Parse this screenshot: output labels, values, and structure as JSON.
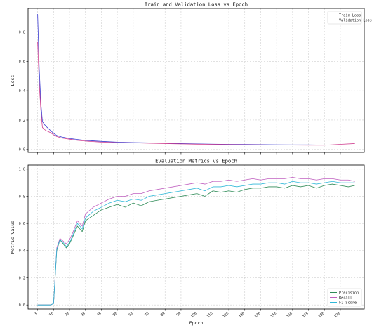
{
  "chart_data": [
    {
      "type": "line",
      "title": "Train and Validation Loss vs Epoch",
      "xlabel": "",
      "ylabel": "Loss",
      "xlim": [
        -6,
        205
      ],
      "ylim": [
        -0.02,
        0.96
      ],
      "xticks": [
        0,
        10,
        20,
        30,
        40,
        50,
        60,
        70,
        80,
        90,
        100,
        110,
        120,
        130,
        140,
        150,
        160,
        170,
        180,
        190
      ],
      "show_xtick_labels": false,
      "yticks": [
        0.0,
        0.2,
        0.4,
        0.6,
        0.8
      ],
      "ytick_labels": [
        "0.0",
        "0.2",
        "0.4",
        "0.6",
        "0.8"
      ],
      "grid": true,
      "legend_position": "top-right",
      "series": [
        {
          "name": "Train Loss",
          "color": "#3a3ad0",
          "x": [
            0,
            1,
            2,
            3,
            5,
            8,
            10,
            12,
            15,
            20,
            25,
            30,
            40,
            50,
            60,
            70,
            80,
            90,
            100,
            110,
            120,
            130,
            140,
            150,
            160,
            170,
            180,
            190,
            199
          ],
          "y": [
            0.92,
            0.55,
            0.32,
            0.19,
            0.16,
            0.13,
            0.11,
            0.095,
            0.085,
            0.075,
            0.068,
            0.062,
            0.055,
            0.05,
            0.047,
            0.045,
            0.042,
            0.04,
            0.038,
            0.036,
            0.035,
            0.034,
            0.033,
            0.032,
            0.031,
            0.031,
            0.03,
            0.03,
            0.03
          ]
        },
        {
          "name": "Validation Loss",
          "color": "#d04090",
          "x": [
            0,
            1,
            2,
            3,
            5,
            8,
            10,
            12,
            15,
            20,
            25,
            30,
            40,
            50,
            60,
            70,
            80,
            90,
            100,
            110,
            120,
            130,
            140,
            150,
            160,
            170,
            180,
            190,
            199
          ],
          "y": [
            0.73,
            0.45,
            0.27,
            0.15,
            0.13,
            0.115,
            0.1,
            0.088,
            0.078,
            0.07,
            0.062,
            0.057,
            0.05,
            0.046,
            0.045,
            0.042,
            0.04,
            0.038,
            0.036,
            0.035,
            0.033,
            0.032,
            0.031,
            0.03,
            0.03,
            0.029,
            0.029,
            0.035,
            0.04
          ]
        }
      ]
    },
    {
      "type": "line",
      "title": "Evaluation Metrics vs Epoch",
      "xlabel": "Epoch",
      "ylabel": "Metric Value",
      "xlim": [
        -6,
        205
      ],
      "ylim": [
        -0.03,
        1.03
      ],
      "xticks": [
        0,
        10,
        20,
        30,
        40,
        50,
        60,
        70,
        80,
        90,
        100,
        110,
        120,
        130,
        140,
        150,
        160,
        170,
        180,
        190
      ],
      "show_xtick_labels": true,
      "yticks": [
        0.0,
        0.2,
        0.4,
        0.6,
        0.8,
        1.0
      ],
      "ytick_labels": [
        "0.0",
        "0.2",
        "0.4",
        "0.6",
        "0.8",
        "1.0"
      ],
      "grid": true,
      "legend_position": "bottom-right",
      "series": [
        {
          "name": "Precision",
          "color": "#2e8b57",
          "x": [
            0,
            2,
            4,
            6,
            8,
            10,
            12,
            14,
            16,
            18,
            20,
            22,
            25,
            28,
            30,
            35,
            40,
            45,
            50,
            55,
            60,
            65,
            70,
            75,
            80,
            85,
            90,
            95,
            100,
            105,
            110,
            115,
            120,
            125,
            130,
            135,
            140,
            145,
            150,
            155,
            160,
            165,
            170,
            175,
            180,
            185,
            190,
            195,
            199
          ],
          "y": [
            0.0,
            0.0,
            0.0,
            0.0,
            0.0,
            0.01,
            0.4,
            0.48,
            0.45,
            0.42,
            0.45,
            0.5,
            0.58,
            0.54,
            0.62,
            0.66,
            0.7,
            0.72,
            0.74,
            0.72,
            0.75,
            0.73,
            0.76,
            0.77,
            0.78,
            0.79,
            0.8,
            0.81,
            0.82,
            0.8,
            0.84,
            0.83,
            0.84,
            0.83,
            0.85,
            0.86,
            0.86,
            0.87,
            0.87,
            0.86,
            0.88,
            0.87,
            0.88,
            0.86,
            0.88,
            0.89,
            0.88,
            0.87,
            0.88
          ]
        },
        {
          "name": "Recall",
          "color": "#c060c0",
          "x": [
            0,
            2,
            4,
            6,
            8,
            10,
            12,
            14,
            16,
            18,
            20,
            22,
            25,
            28,
            30,
            35,
            40,
            45,
            50,
            55,
            60,
            65,
            70,
            75,
            80,
            85,
            90,
            95,
            100,
            105,
            110,
            115,
            120,
            125,
            130,
            135,
            140,
            145,
            150,
            155,
            160,
            165,
            170,
            175,
            180,
            185,
            190,
            195,
            199
          ],
          "y": [
            0.0,
            0.0,
            0.0,
            0.0,
            0.0,
            0.01,
            0.42,
            0.49,
            0.47,
            0.45,
            0.48,
            0.53,
            0.62,
            0.58,
            0.67,
            0.72,
            0.75,
            0.78,
            0.8,
            0.8,
            0.82,
            0.82,
            0.84,
            0.85,
            0.86,
            0.87,
            0.88,
            0.89,
            0.9,
            0.89,
            0.91,
            0.91,
            0.92,
            0.91,
            0.92,
            0.93,
            0.92,
            0.93,
            0.93,
            0.93,
            0.94,
            0.93,
            0.93,
            0.92,
            0.93,
            0.93,
            0.92,
            0.92,
            0.91
          ]
        },
        {
          "name": "F1 Score",
          "color": "#30b8d8",
          "x": [
            0,
            2,
            4,
            6,
            8,
            10,
            12,
            14,
            16,
            18,
            20,
            22,
            25,
            28,
            30,
            35,
            40,
            45,
            50,
            55,
            60,
            65,
            70,
            75,
            80,
            85,
            90,
            95,
            100,
            105,
            110,
            115,
            120,
            125,
            130,
            135,
            140,
            145,
            150,
            155,
            160,
            165,
            170,
            175,
            180,
            185,
            190,
            195,
            199
          ],
          "y": [
            0.0,
            0.0,
            0.0,
            0.0,
            0.0,
            0.01,
            0.41,
            0.48,
            0.46,
            0.43,
            0.46,
            0.51,
            0.6,
            0.56,
            0.64,
            0.69,
            0.72,
            0.75,
            0.77,
            0.76,
            0.78,
            0.77,
            0.8,
            0.81,
            0.82,
            0.83,
            0.84,
            0.85,
            0.86,
            0.84,
            0.87,
            0.87,
            0.88,
            0.87,
            0.88,
            0.89,
            0.89,
            0.9,
            0.9,
            0.89,
            0.91,
            0.9,
            0.9,
            0.89,
            0.9,
            0.91,
            0.9,
            0.9,
            0.9
          ]
        }
      ]
    }
  ]
}
